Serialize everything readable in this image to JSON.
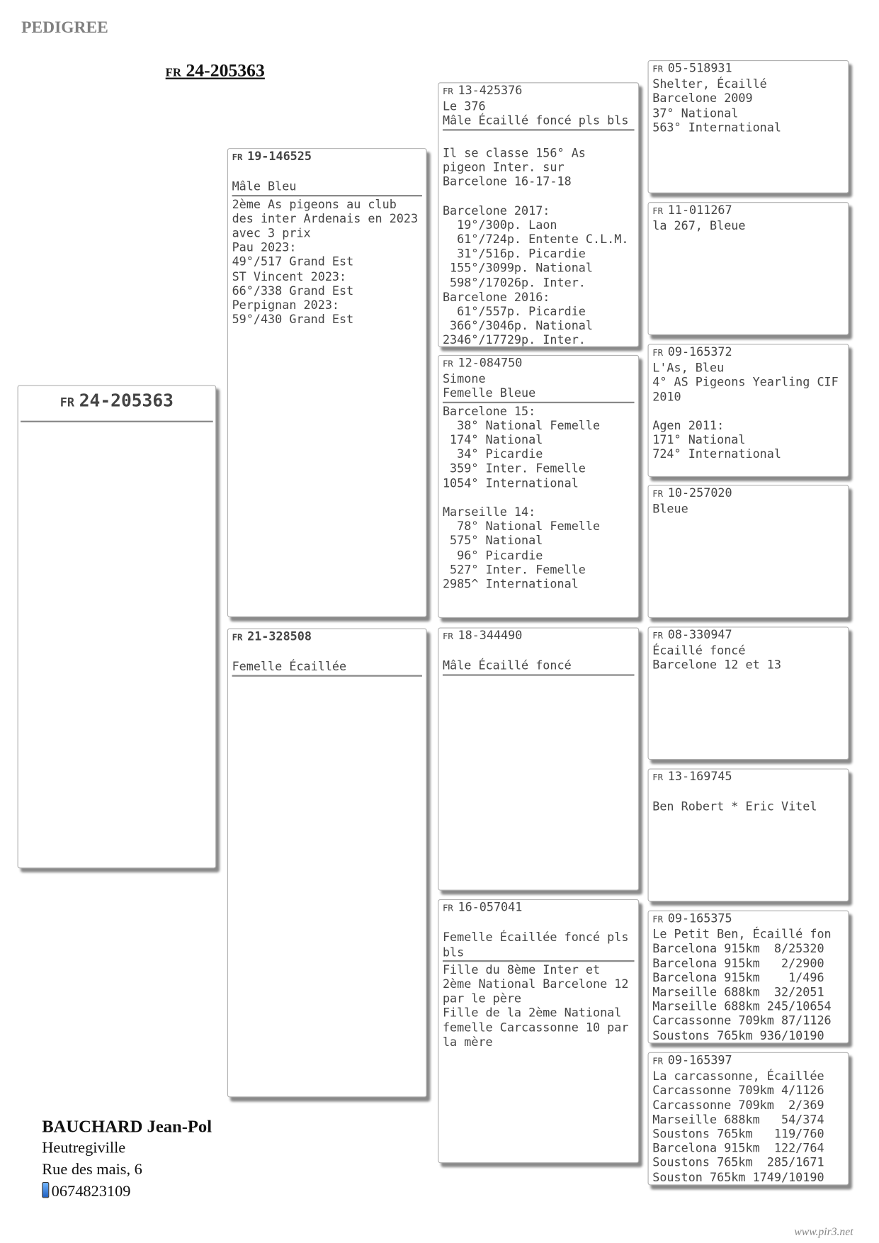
{
  "page_label": "PEDIGREE",
  "main_title": {
    "prefix": "FR",
    "ring": "24-205363"
  },
  "subject": {
    "prefix": "FR",
    "ring": "24-205363"
  },
  "ancestors": [
    {
      "prefix": "FR",
      "ring": "19-146525",
      "header": "\nMâle Bleu",
      "notes": "2ème As pigeons au club\ndes inter Ardenais en 2023\navec 3 prix\nPau 2023:\n49°/517 Grand Est\nST Vincent 2023:\n66°/338 Grand Est\nPerpignan 2023:\n59°/430 Grand Est"
    },
    {
      "prefix": "FR",
      "ring": "21-328508",
      "header": "\nFemelle Écaillée",
      "notes": ""
    },
    {
      "prefix": "FR",
      "ring": "13-425376",
      "header": "Le 376\nMâle Écaillé foncé pls bls",
      "notes": "\nIl se classe 156° As\npigeon Inter. sur\nBarcelone 16-17-18\n\nBarcelone 2017:\n  19°/300p. Laon\n  61°/724p. Entente C.L.M.\n  31°/516p. Picardie\n 155°/3099p. National\n 598°/17026p. Inter.\nBarcelone 2016:\n  61°/557p. Picardie\n 366°/3046p. National\n2346°/17729p. Inter."
    },
    {
      "prefix": "FR",
      "ring": "12-084750",
      "header": "Simone\nFemelle Bleue",
      "notes": "Barcelone 15:\n  38° National Femelle\n 174° National\n  34° Picardie\n 359° Inter. Femelle\n1054° International\n\nMarseille 14:\n  78° National Femelle\n 575° National\n  96° Picardie\n 527° Inter. Femelle\n2985^ International"
    },
    {
      "prefix": "FR",
      "ring": "18-344490",
      "header": "\nMâle Écaillé foncé",
      "notes": ""
    },
    {
      "prefix": "FR",
      "ring": "16-057041",
      "header": "\nFemelle Écaillée foncé pls\nbls",
      "notes": "Fille du 8ème Inter et\n2ème National Barcelone 12\npar le père\nFille de la 2ème National\nfemelle Carcassonne 10 par\nla mère"
    },
    {
      "prefix": "FR",
      "ring": "05-518931",
      "lines": "Shelter, Écaillé\nBarcelone 2009\n37° National\n563° International"
    },
    {
      "prefix": "FR",
      "ring": "11-011267",
      "lines": "la 267, Bleue"
    },
    {
      "prefix": "FR",
      "ring": "09-165372",
      "lines": "L'As, Bleu\n4° AS Pigeons Yearling CIF\n2010\n\nAgen 2011:\n171° National\n724° International"
    },
    {
      "prefix": "FR",
      "ring": "10-257020",
      "lines": "Bleue"
    },
    {
      "prefix": "FR",
      "ring": "08-330947",
      "lines": "Écaillé foncé\nBarcelone 12 et 13"
    },
    {
      "prefix": "FR",
      "ring": "13-169745",
      "lines": "\nBen Robert * Eric Vitel"
    },
    {
      "prefix": "FR",
      "ring": "09-165375",
      "lines": "Le Petit Ben, Écaillé fon\nBarcelona 915km  8/25320\nBarcelona 915km   2/2900\nBarcelona 915km    1/496\nMarseille 688km  32/2051\nMarseille 688km 245/10654\nCarcassonne 709km 87/1126\nSoustons 765km 936/10190"
    },
    {
      "prefix": "FR",
      "ring": "09-165397",
      "lines": "La carcassonne, Écaillée\nCarcassonne 709km 4/1126\nCarcassonne 709km  2/369\nMarseille 688km   54/374\nSoustons 765km   119/760\nBarcelona 915km  122/764\nSoustons 765km  285/1671\nSouston 765km 1749/10190"
    }
  ],
  "owner": {
    "name": "BAUCHARD Jean-Pol",
    "city": "Heutregiville",
    "street": "Rue des mais, 6",
    "phone_icon": "mobile-phone-icon",
    "phone": "0674823109"
  },
  "website": "www.pir3.net"
}
